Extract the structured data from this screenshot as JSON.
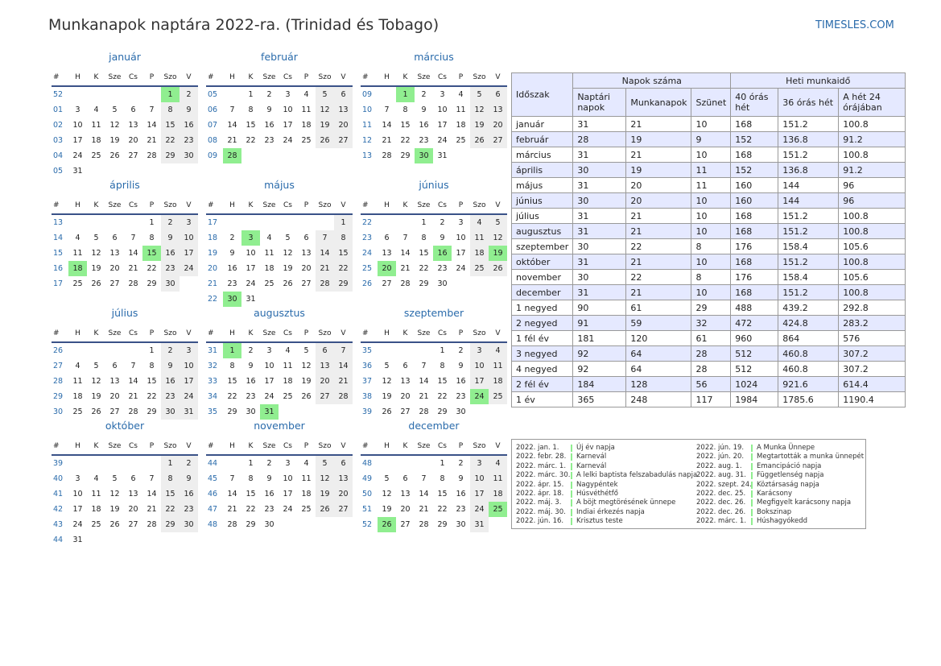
{
  "title": "Munkanapok naptára 2022-ra. (Trinidad és Tobago)",
  "site": "TIMESLES.COM",
  "colors": {
    "accent": "#2a6bab",
    "holiday": "#90ee90",
    "weekend": "#eeeeee",
    "table_header": "#e5e9ff"
  },
  "weekday_headers": [
    "#",
    "H",
    "K",
    "Sze",
    "Cs",
    "P",
    "Szo",
    "V"
  ],
  "months": [
    {
      "name": "január",
      "weeks": [
        {
          "wk": "52",
          "days": [
            "",
            "",
            "",
            "",
            "",
            "1",
            "2"
          ]
        },
        {
          "wk": "01",
          "days": [
            "3",
            "4",
            "5",
            "6",
            "7",
            "8",
            "9"
          ]
        },
        {
          "wk": "02",
          "days": [
            "10",
            "11",
            "12",
            "13",
            "14",
            "15",
            "16"
          ]
        },
        {
          "wk": "03",
          "days": [
            "17",
            "18",
            "19",
            "20",
            "21",
            "22",
            "23"
          ]
        },
        {
          "wk": "04",
          "days": [
            "24",
            "25",
            "26",
            "27",
            "28",
            "29",
            "30"
          ]
        },
        {
          "wk": "05",
          "days": [
            "31",
            "",
            "",
            "",
            "",
            "",
            ""
          ]
        }
      ],
      "holidays": [
        "1"
      ]
    },
    {
      "name": "február",
      "weeks": [
        {
          "wk": "05",
          "days": [
            "",
            "1",
            "2",
            "3",
            "4",
            "5",
            "6"
          ]
        },
        {
          "wk": "06",
          "days": [
            "7",
            "8",
            "9",
            "10",
            "11",
            "12",
            "13"
          ]
        },
        {
          "wk": "07",
          "days": [
            "14",
            "15",
            "16",
            "17",
            "18",
            "19",
            "20"
          ]
        },
        {
          "wk": "08",
          "days": [
            "21",
            "22",
            "23",
            "24",
            "25",
            "26",
            "27"
          ]
        },
        {
          "wk": "09",
          "days": [
            "28",
            "",
            "",
            "",
            "",
            "",
            ""
          ]
        }
      ],
      "holidays": [
        "28"
      ]
    },
    {
      "name": "március",
      "weeks": [
        {
          "wk": "09",
          "days": [
            "",
            "1",
            "2",
            "3",
            "4",
            "5",
            "6"
          ]
        },
        {
          "wk": "10",
          "days": [
            "7",
            "8",
            "9",
            "10",
            "11",
            "12",
            "13"
          ]
        },
        {
          "wk": "11",
          "days": [
            "14",
            "15",
            "16",
            "17",
            "18",
            "19",
            "20"
          ]
        },
        {
          "wk": "12",
          "days": [
            "21",
            "22",
            "23",
            "24",
            "25",
            "26",
            "27"
          ]
        },
        {
          "wk": "13",
          "days": [
            "28",
            "29",
            "30",
            "31",
            "",
            "",
            ""
          ]
        }
      ],
      "holidays": [
        "1",
        "30"
      ]
    },
    {
      "name": "április",
      "weeks": [
        {
          "wk": "13",
          "days": [
            "",
            "",
            "",
            "",
            "1",
            "2",
            "3"
          ]
        },
        {
          "wk": "14",
          "days": [
            "4",
            "5",
            "6",
            "7",
            "8",
            "9",
            "10"
          ]
        },
        {
          "wk": "15",
          "days": [
            "11",
            "12",
            "13",
            "14",
            "15",
            "16",
            "17"
          ]
        },
        {
          "wk": "16",
          "days": [
            "18",
            "19",
            "20",
            "21",
            "22",
            "23",
            "24"
          ]
        },
        {
          "wk": "17",
          "days": [
            "25",
            "26",
            "27",
            "28",
            "29",
            "30",
            ""
          ]
        }
      ],
      "holidays": [
        "15",
        "18"
      ]
    },
    {
      "name": "május",
      "weeks": [
        {
          "wk": "17",
          "days": [
            "",
            "",
            "",
            "",
            "",
            "",
            "1"
          ]
        },
        {
          "wk": "18",
          "days": [
            "2",
            "3",
            "4",
            "5",
            "6",
            "7",
            "8"
          ]
        },
        {
          "wk": "19",
          "days": [
            "9",
            "10",
            "11",
            "12",
            "13",
            "14",
            "15"
          ]
        },
        {
          "wk": "20",
          "days": [
            "16",
            "17",
            "18",
            "19",
            "20",
            "21",
            "22"
          ]
        },
        {
          "wk": "21",
          "days": [
            "23",
            "24",
            "25",
            "26",
            "27",
            "28",
            "29"
          ]
        },
        {
          "wk": "22",
          "days": [
            "30",
            "31",
            "",
            "",
            "",
            "",
            ""
          ]
        }
      ],
      "holidays": [
        "3",
        "30"
      ]
    },
    {
      "name": "június",
      "weeks": [
        {
          "wk": "22",
          "days": [
            "",
            "",
            "1",
            "2",
            "3",
            "4",
            "5"
          ]
        },
        {
          "wk": "23",
          "days": [
            "6",
            "7",
            "8",
            "9",
            "10",
            "11",
            "12"
          ]
        },
        {
          "wk": "24",
          "days": [
            "13",
            "14",
            "15",
            "16",
            "17",
            "18",
            "19"
          ]
        },
        {
          "wk": "25",
          "days": [
            "20",
            "21",
            "22",
            "23",
            "24",
            "25",
            "26"
          ]
        },
        {
          "wk": "26",
          "days": [
            "27",
            "28",
            "29",
            "30",
            "",
            "",
            ""
          ]
        }
      ],
      "holidays": [
        "16",
        "19",
        "20"
      ]
    },
    {
      "name": "július",
      "weeks": [
        {
          "wk": "26",
          "days": [
            "",
            "",
            "",
            "",
            "1",
            "2",
            "3"
          ]
        },
        {
          "wk": "27",
          "days": [
            "4",
            "5",
            "6",
            "7",
            "8",
            "9",
            "10"
          ]
        },
        {
          "wk": "28",
          "days": [
            "11",
            "12",
            "13",
            "14",
            "15",
            "16",
            "17"
          ]
        },
        {
          "wk": "29",
          "days": [
            "18",
            "19",
            "20",
            "21",
            "22",
            "23",
            "24"
          ]
        },
        {
          "wk": "30",
          "days": [
            "25",
            "26",
            "27",
            "28",
            "29",
            "30",
            "31"
          ]
        }
      ],
      "holidays": []
    },
    {
      "name": "augusztus",
      "weeks": [
        {
          "wk": "31",
          "days": [
            "1",
            "2",
            "3",
            "4",
            "5",
            "6",
            "7"
          ]
        },
        {
          "wk": "32",
          "days": [
            "8",
            "9",
            "10",
            "11",
            "12",
            "13",
            "14"
          ]
        },
        {
          "wk": "33",
          "days": [
            "15",
            "16",
            "17",
            "18",
            "19",
            "20",
            "21"
          ]
        },
        {
          "wk": "34",
          "days": [
            "22",
            "23",
            "24",
            "25",
            "26",
            "27",
            "28"
          ]
        },
        {
          "wk": "35",
          "days": [
            "29",
            "30",
            "31",
            "",
            "",
            "",
            ""
          ]
        }
      ],
      "holidays": [
        "1",
        "31"
      ]
    },
    {
      "name": "szeptember",
      "weeks": [
        {
          "wk": "35",
          "days": [
            "",
            "",
            "",
            "1",
            "2",
            "3",
            "4"
          ]
        },
        {
          "wk": "36",
          "days": [
            "5",
            "6",
            "7",
            "8",
            "9",
            "10",
            "11"
          ]
        },
        {
          "wk": "37",
          "days": [
            "12",
            "13",
            "14",
            "15",
            "16",
            "17",
            "18"
          ]
        },
        {
          "wk": "38",
          "days": [
            "19",
            "20",
            "21",
            "22",
            "23",
            "24",
            "25"
          ]
        },
        {
          "wk": "39",
          "days": [
            "26",
            "27",
            "28",
            "29",
            "30",
            "",
            ""
          ]
        }
      ],
      "holidays": [
        "24"
      ]
    },
    {
      "name": "október",
      "weeks": [
        {
          "wk": "39",
          "days": [
            "",
            "",
            "",
            "",
            "",
            "1",
            "2"
          ]
        },
        {
          "wk": "40",
          "days": [
            "3",
            "4",
            "5",
            "6",
            "7",
            "8",
            "9"
          ]
        },
        {
          "wk": "41",
          "days": [
            "10",
            "11",
            "12",
            "13",
            "14",
            "15",
            "16"
          ]
        },
        {
          "wk": "42",
          "days": [
            "17",
            "18",
            "19",
            "20",
            "21",
            "22",
            "23"
          ]
        },
        {
          "wk": "43",
          "days": [
            "24",
            "25",
            "26",
            "27",
            "28",
            "29",
            "30"
          ]
        },
        {
          "wk": "44",
          "days": [
            "31",
            "",
            "",
            "",
            "",
            "",
            ""
          ]
        }
      ],
      "holidays": []
    },
    {
      "name": "november",
      "weeks": [
        {
          "wk": "44",
          "days": [
            "",
            "1",
            "2",
            "3",
            "4",
            "5",
            "6"
          ]
        },
        {
          "wk": "45",
          "days": [
            "7",
            "8",
            "9",
            "10",
            "11",
            "12",
            "13"
          ]
        },
        {
          "wk": "46",
          "days": [
            "14",
            "15",
            "16",
            "17",
            "18",
            "19",
            "20"
          ]
        },
        {
          "wk": "47",
          "days": [
            "21",
            "22",
            "23",
            "24",
            "25",
            "26",
            "27"
          ]
        },
        {
          "wk": "48",
          "days": [
            "28",
            "29",
            "30",
            "",
            "",
            "",
            ""
          ]
        }
      ],
      "holidays": []
    },
    {
      "name": "december",
      "weeks": [
        {
          "wk": "48",
          "days": [
            "",
            "",
            "",
            "1",
            "2",
            "3",
            "4"
          ]
        },
        {
          "wk": "49",
          "days": [
            "5",
            "6",
            "7",
            "8",
            "9",
            "10",
            "11"
          ]
        },
        {
          "wk": "50",
          "days": [
            "12",
            "13",
            "14",
            "15",
            "16",
            "17",
            "18"
          ]
        },
        {
          "wk": "51",
          "days": [
            "19",
            "20",
            "21",
            "22",
            "23",
            "24",
            "25"
          ]
        },
        {
          "wk": "52",
          "days": [
            "26",
            "27",
            "28",
            "29",
            "30",
            "31",
            ""
          ]
        }
      ],
      "holidays": [
        "25",
        "26"
      ]
    }
  ],
  "stats": {
    "h_period": "Időszak",
    "h_days": "Napok száma",
    "h_weekly": "Heti munkaidő",
    "sub_headers": [
      "Naptári napok",
      "Munkanapok",
      "Szünet",
      "40 órás hét",
      "36 órás hét",
      "A hét 24 órájában"
    ],
    "rows": [
      [
        "január",
        "31",
        "21",
        "10",
        "168",
        "151.2",
        "100.8"
      ],
      [
        "február",
        "28",
        "19",
        "9",
        "152",
        "136.8",
        "91.2"
      ],
      [
        "március",
        "31",
        "21",
        "10",
        "168",
        "151.2",
        "100.8"
      ],
      [
        "április",
        "30",
        "19",
        "11",
        "152",
        "136.8",
        "91.2"
      ],
      [
        "május",
        "31",
        "20",
        "11",
        "160",
        "144",
        "96"
      ],
      [
        "június",
        "30",
        "20",
        "10",
        "160",
        "144",
        "96"
      ],
      [
        "július",
        "31",
        "21",
        "10",
        "168",
        "151.2",
        "100.8"
      ],
      [
        "augusztus",
        "31",
        "21",
        "10",
        "168",
        "151.2",
        "100.8"
      ],
      [
        "szeptember",
        "30",
        "22",
        "8",
        "176",
        "158.4",
        "105.6"
      ],
      [
        "október",
        "31",
        "21",
        "10",
        "168",
        "151.2",
        "100.8"
      ],
      [
        "november",
        "30",
        "22",
        "8",
        "176",
        "158.4",
        "105.6"
      ],
      [
        "december",
        "31",
        "21",
        "10",
        "168",
        "151.2",
        "100.8"
      ],
      [
        "1 negyed",
        "90",
        "61",
        "29",
        "488",
        "439.2",
        "292.8"
      ],
      [
        "2 negyed",
        "91",
        "59",
        "32",
        "472",
        "424.8",
        "283.2"
      ],
      [
        "1 fél év",
        "181",
        "120",
        "61",
        "960",
        "864",
        "576"
      ],
      [
        "3 negyed",
        "92",
        "64",
        "28",
        "512",
        "460.8",
        "307.2"
      ],
      [
        "4 negyed",
        "92",
        "64",
        "28",
        "512",
        "460.8",
        "307.2"
      ],
      [
        "2 fél év",
        "184",
        "128",
        "56",
        "1024",
        "921.6",
        "614.4"
      ],
      [
        "1 év",
        "365",
        "248",
        "117",
        "1984",
        "1785.6",
        "1190.4"
      ]
    ],
    "alt_rows": [
      1,
      3,
      5,
      7,
      9,
      11,
      13,
      15,
      17
    ]
  },
  "holidays_list": [
    {
      "date": "2022. jan. 1.",
      "name": "Új év napja"
    },
    {
      "date": "2022. febr. 28.",
      "name": "Karnevál"
    },
    {
      "date": "2022. márc. 1.",
      "name": "Karnevál"
    },
    {
      "date": "2022. márc. 30.",
      "name": "A lelki baptista felszabadulás napja"
    },
    {
      "date": "2022. ápr. 15.",
      "name": "Nagypéntek"
    },
    {
      "date": "2022. ápr. 18.",
      "name": "Húsvéthétfő"
    },
    {
      "date": "2022. máj. 3.",
      "name": "A böjt megtörésének ünnepe"
    },
    {
      "date": "2022. máj. 30.",
      "name": "Indiai érkezés napja"
    },
    {
      "date": "2022. jún. 16.",
      "name": "Krisztus teste"
    },
    {
      "date": "2022. jún. 19.",
      "name": "A Munka Ünnepe"
    },
    {
      "date": "2022. jún. 20.",
      "name": "Megtartották a munka ünnepét"
    },
    {
      "date": "2022. aug. 1.",
      "name": "Emancipáció napja"
    },
    {
      "date": "2022. aug. 31.",
      "name": "Függetlenség napja"
    },
    {
      "date": "2022. szept. 24.",
      "name": "Köztársaság napja"
    },
    {
      "date": "2022. dec. 25.",
      "name": "Karácsony"
    },
    {
      "date": "2022. dec. 26.",
      "name": "Megfigyelt karácsony napja"
    },
    {
      "date": "2022. dec. 26.",
      "name": "Bokszinap"
    },
    {
      "date": "2022. márc. 1.",
      "name": "Húshagyókedd"
    }
  ]
}
